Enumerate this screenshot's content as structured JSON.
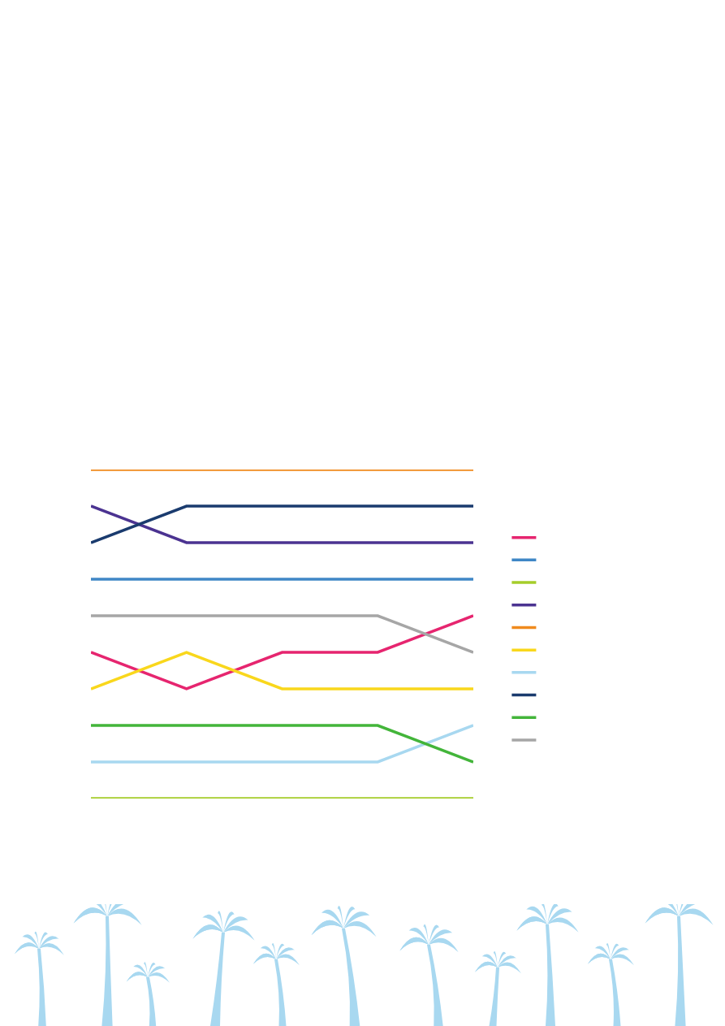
{
  "chart_data": {
    "type": "line",
    "categories": [
      null,
      null,
      null,
      null,
      null
    ],
    "series": [
      {
        "color": "#e6256f",
        "values": [
          6,
          7,
          6,
          6,
          5
        ]
      },
      {
        "color": "#3f87c6",
        "values": [
          4,
          4,
          4,
          4,
          4
        ]
      },
      {
        "color": "#a5cd2a",
        "values": [
          10,
          10,
          10,
          10,
          10
        ]
      },
      {
        "color": "#4b3391",
        "values": [
          2,
          3,
          3,
          3,
          3
        ]
      },
      {
        "color": "#f08a1d",
        "values": [
          1,
          1,
          1,
          1,
          1
        ]
      },
      {
        "color": "#f9d71c",
        "values": [
          7,
          6,
          7,
          7,
          7
        ]
      },
      {
        "color": "#a8d8f0",
        "values": [
          9,
          9,
          9,
          9,
          8
        ]
      },
      {
        "color": "#1a3b6e",
        "values": [
          3,
          2,
          2,
          2,
          2
        ]
      },
      {
        "color": "#43b53a",
        "values": [
          8,
          8,
          8,
          8,
          9
        ]
      },
      {
        "color": "#a6a6a6",
        "values": [
          5,
          5,
          5,
          5,
          6
        ]
      }
    ],
    "ylim": [
      10,
      1
    ],
    "grid": false,
    "tick_labels": false,
    "legend": "right",
    "marker": "none"
  }
}
